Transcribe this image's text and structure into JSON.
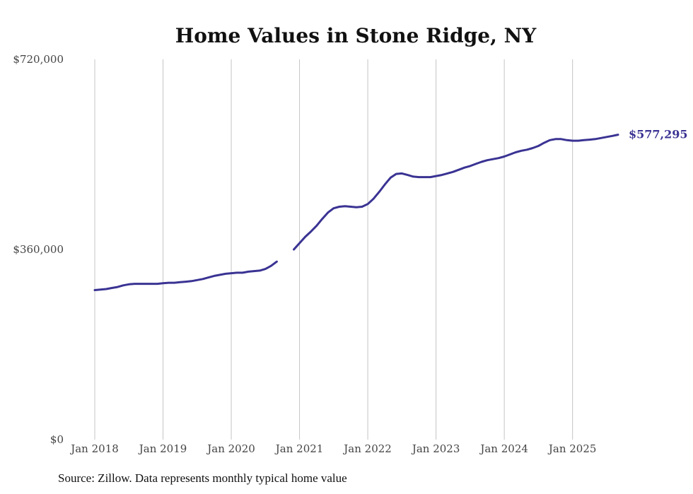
{
  "chart_data": {
    "type": "line",
    "title": "Home Values in Stone Ridge, NY",
    "ylim": [
      0,
      720000
    ],
    "y_ticks": [
      {
        "value": 0,
        "label": "$0"
      },
      {
        "value": 360000,
        "label": "$360,000"
      },
      {
        "value": 720000,
        "label": "$720,000"
      }
    ],
    "x_ticks": [
      {
        "value": "2018-01",
        "label": "Jan 2018"
      },
      {
        "value": "2019-01",
        "label": "Jan 2019"
      },
      {
        "value": "2020-01",
        "label": "Jan 2020"
      },
      {
        "value": "2021-01",
        "label": "Jan 2021"
      },
      {
        "value": "2022-01",
        "label": "Jan 2022"
      },
      {
        "value": "2023-01",
        "label": "Jan 2023"
      },
      {
        "value": "2024-01",
        "label": "Jan 2024"
      },
      {
        "value": "2025-01",
        "label": "Jan 2025"
      }
    ],
    "grid": "vertical",
    "end_label": "$577,295",
    "series": [
      {
        "color": "#3a3393",
        "points": [
          [
            "2018-01",
            283000
          ],
          [
            "2018-02",
            284000
          ],
          [
            "2018-03",
            285000
          ],
          [
            "2018-04",
            287000
          ],
          [
            "2018-05",
            289000
          ],
          [
            "2018-06",
            292000
          ],
          [
            "2018-07",
            294000
          ],
          [
            "2018-08",
            295000
          ],
          [
            "2018-09",
            295000
          ],
          [
            "2018-10",
            295000
          ],
          [
            "2018-11",
            295000
          ],
          [
            "2018-12",
            295000
          ],
          [
            "2019-01",
            296000
          ],
          [
            "2019-02",
            297000
          ],
          [
            "2019-03",
            297000
          ],
          [
            "2019-04",
            298000
          ],
          [
            "2019-05",
            299000
          ],
          [
            "2019-06",
            300000
          ],
          [
            "2019-07",
            302000
          ],
          [
            "2019-08",
            304000
          ],
          [
            "2019-09",
            307000
          ],
          [
            "2019-10",
            310000
          ],
          [
            "2019-11",
            312000
          ],
          [
            "2019-12",
            314000
          ],
          [
            "2020-01",
            315000
          ],
          [
            "2020-02",
            316000
          ],
          [
            "2020-03",
            316000
          ],
          [
            "2020-04",
            318000
          ],
          [
            "2020-05",
            319000
          ],
          [
            "2020-06",
            320000
          ],
          [
            "2020-07",
            323000
          ],
          [
            "2020-08",
            329000
          ],
          [
            "2020-09",
            337000
          ],
          null,
          [
            "2020-12",
            360000
          ],
          [
            "2021-01",
            372000
          ],
          [
            "2021-02",
            384000
          ],
          [
            "2021-03",
            394000
          ],
          [
            "2021-04",
            405000
          ],
          [
            "2021-05",
            418000
          ],
          [
            "2021-06",
            430000
          ],
          [
            "2021-07",
            438000
          ],
          [
            "2021-08",
            441000
          ],
          [
            "2021-09",
            442000
          ],
          [
            "2021-10",
            441000
          ],
          [
            "2021-11",
            440000
          ],
          [
            "2021-12",
            441000
          ],
          [
            "2022-01",
            446000
          ],
          [
            "2022-02",
            456000
          ],
          [
            "2022-03",
            469000
          ],
          [
            "2022-04",
            483000
          ],
          [
            "2022-05",
            496000
          ],
          [
            "2022-06",
            503000
          ],
          [
            "2022-07",
            504000
          ],
          [
            "2022-08",
            501000
          ],
          [
            "2022-09",
            498000
          ],
          [
            "2022-10",
            497000
          ],
          [
            "2022-11",
            497000
          ],
          [
            "2022-12",
            497000
          ],
          [
            "2023-01",
            499000
          ],
          [
            "2023-02",
            501000
          ],
          [
            "2023-03",
            504000
          ],
          [
            "2023-04",
            507000
          ],
          [
            "2023-05",
            511000
          ],
          [
            "2023-06",
            515000
          ],
          [
            "2023-07",
            518000
          ],
          [
            "2023-08",
            522000
          ],
          [
            "2023-09",
            526000
          ],
          [
            "2023-10",
            529000
          ],
          [
            "2023-11",
            531000
          ],
          [
            "2023-12",
            533000
          ],
          [
            "2024-01",
            536000
          ],
          [
            "2024-02",
            540000
          ],
          [
            "2024-03",
            544000
          ],
          [
            "2024-04",
            547000
          ],
          [
            "2024-05",
            549000
          ],
          [
            "2024-06",
            552000
          ],
          [
            "2024-07",
            556000
          ],
          [
            "2024-08",
            562000
          ],
          [
            "2024-09",
            567000
          ],
          [
            "2024-10",
            569000
          ],
          [
            "2024-11",
            569000
          ],
          [
            "2024-12",
            567000
          ],
          [
            "2025-01",
            566000
          ],
          [
            "2025-02",
            566000
          ],
          [
            "2025-03",
            567000
          ],
          [
            "2025-04",
            568000
          ],
          [
            "2025-05",
            569000
          ],
          [
            "2025-06",
            571000
          ],
          [
            "2025-07",
            573000
          ],
          [
            "2025-08",
            575000
          ],
          [
            "2025-09",
            577295
          ]
        ]
      }
    ]
  },
  "footer": {
    "source": "Source: Zillow. Data represents monthly typical home value"
  }
}
